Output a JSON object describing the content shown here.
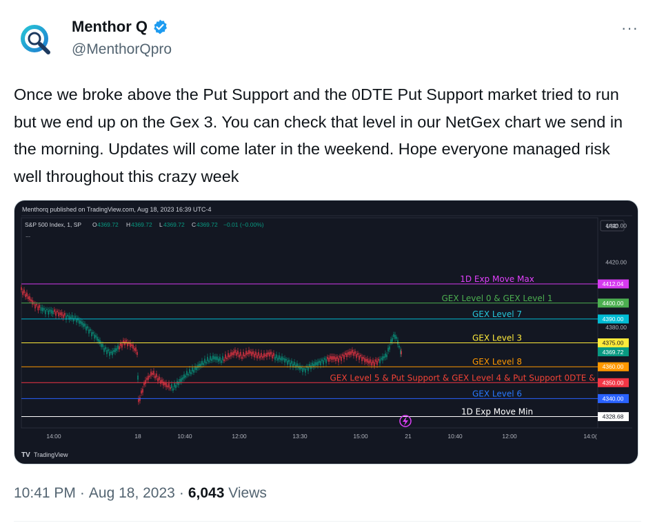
{
  "author": {
    "name": "Menthor Q",
    "handle": "@MenthorQpro",
    "avatar_icon": "menthorq-logo-icon",
    "verified_color": "#1d9bf0"
  },
  "more_label": "···",
  "tweet_text": "Once we broke above the Put Support and the 0DTE Put Support market tried to run but we end up on the Gex 3. You can check that level in our NetGex chart we send in the morning. Updates will come later in the weekend. Hope everyone managed risk well throughout this crazy week",
  "chart": {
    "publisher_line": "Menthorq published on TradingView.com, Aug 18, 2023 16:39 UTC-4",
    "symbol_line": "S&P 500 Index, 1, SP",
    "ohlc": {
      "o": "4369.72",
      "h": "4369.72",
      "l": "4369.72",
      "c": "4369.72",
      "chg": "−0.01 (−0.00%)"
    },
    "ellipsis": "...",
    "currency": "USD",
    "axis_prices": [
      "4440.00",
      "4420.00",
      "4380.00"
    ],
    "time_labels": [
      "14:00",
      "18",
      "10:40",
      "12:00",
      "13:30",
      "15:00",
      "21",
      "10:40",
      "12:00",
      "14:0("
    ],
    "brand": "TradingView",
    "levels": [
      {
        "name": "1D Exp Move Max",
        "price": "4412.04",
        "color": "#d63af0",
        "label_color": "#e040fb"
      },
      {
        "name": "GEX Level 0 & GEX Level 1",
        "price": "4400.00",
        "color": "#4caf50",
        "label_color": "#4caf50"
      },
      {
        "name": "GEX Level 7",
        "price": "4390.00",
        "color": "#00bcd4",
        "label_color": "#26c6da"
      },
      {
        "name": "GEX Level 3",
        "price": "4375.00",
        "color": "#ffeb3b",
        "label_color": "#ffeb3b"
      },
      {
        "name": "GEX Level 8",
        "price": "4360.00",
        "color": "#ff9800",
        "label_color": "#ff9800"
      },
      {
        "name": "GEX Level 5 & Put Support & GEX Level 4 & Put Support 0DTE &",
        "price": "4350.00",
        "color": "#f23645",
        "label_color": "#f44336"
      },
      {
        "name": "GEX Level 6",
        "price": "4340.00",
        "color": "#2962ff",
        "label_color": "#2979ff"
      },
      {
        "name": "1D Exp Move Min",
        "price": "4328.68",
        "color": "#ffffff",
        "label_color": "#ffffff"
      }
    ],
    "last_price": "4369.72"
  },
  "footer": {
    "time": "10:41 PM",
    "date": "Aug 18, 2023",
    "views_count": "6,043",
    "views_label": "Views"
  }
}
